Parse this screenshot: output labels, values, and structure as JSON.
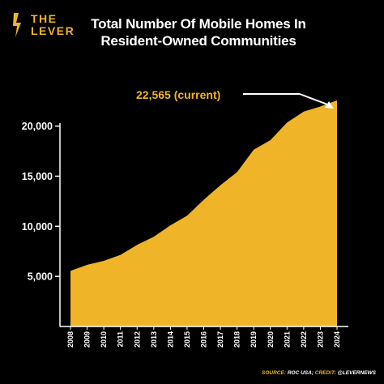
{
  "brand": {
    "line1": "THE",
    "line2": "LEVER",
    "color": "#f0b429",
    "icon": "lightning-slash-icon"
  },
  "title": "Total Number Of Mobile Homes In Resident-Owned Communities",
  "annotation": "22,565 (current)",
  "credit": {
    "source_label": "SOURCE:",
    "source": "ROC USA;",
    "credit_label": "CREDIT:",
    "credit": "@LEVERNEWS"
  },
  "colors": {
    "background": "#000000",
    "area": "#f0b429",
    "axis": "#ffffff",
    "text": "#ffffff"
  },
  "chart_data": {
    "type": "area",
    "title": "Total Number Of Mobile Homes In Resident-Owned Communities",
    "x": [
      "2008",
      "2009",
      "2010",
      "2011",
      "2012",
      "2013",
      "2014",
      "2015",
      "2016",
      "2017",
      "2018",
      "2019",
      "2020",
      "2021",
      "2022",
      "2023",
      "2024"
    ],
    "values": [
      5550,
      6150,
      6550,
      7150,
      8150,
      8950,
      10100,
      11050,
      12650,
      14100,
      15400,
      17650,
      18600,
      20350,
      21450,
      21950,
      22565
    ],
    "y_ticks": [
      "5,000",
      "10,000",
      "15,000",
      "20,000"
    ],
    "y_tick_values": [
      5000,
      10000,
      15000,
      20000
    ],
    "ylim": [
      0,
      24500
    ],
    "xlabel": "",
    "ylabel": "",
    "grid": false,
    "series": [
      {
        "values": [
          5550,
          6150,
          6550,
          7150,
          8150,
          8950,
          10100,
          11050,
          12650,
          14100,
          15400,
          17650,
          18600,
          20350,
          21450,
          21950,
          22565
        ]
      }
    ]
  }
}
